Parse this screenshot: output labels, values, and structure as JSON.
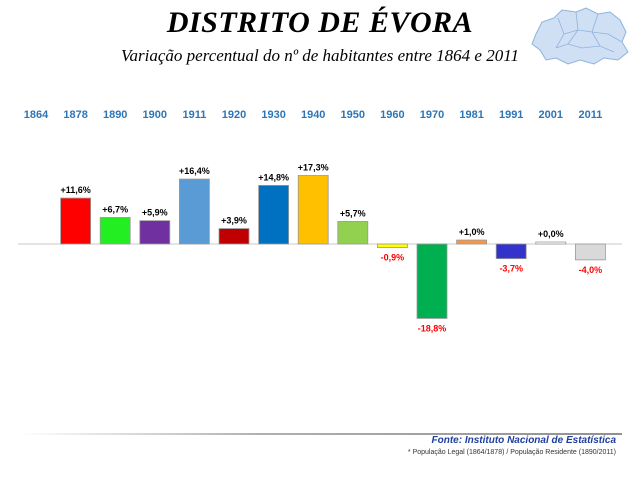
{
  "header": {
    "title": "DISTRITO DE ÉVORA",
    "subtitle": "Variação percentual do nº de habitantes entre 1864 e 2011"
  },
  "map_icon": {
    "icon": "district-map-icon",
    "color": "#cfe0f5",
    "outline": "#8fb2dc"
  },
  "footer": {
    "source": "Fonte: Instituto Nacional de Estatística",
    "note": "* População Legal (1864/1878) / População Residente (1890/2011)"
  },
  "colors": {
    "year_labels": "#2e75b6",
    "positive_label": "#000000",
    "negative_label": "#ff0000",
    "baseline": "#c8c8c8"
  },
  "chart_data": {
    "type": "bar",
    "categories": [
      "1864",
      "1878",
      "1890",
      "1900",
      "1911",
      "1920",
      "1930",
      "1940",
      "1950",
      "1960",
      "1970",
      "1981",
      "1991",
      "2001",
      "2011"
    ],
    "values": [
      null,
      11.6,
      6.7,
      5.9,
      16.4,
      3.9,
      14.8,
      17.3,
      5.7,
      -0.9,
      -18.8,
      1.0,
      -3.7,
      0.0,
      -4.0
    ],
    "labels": [
      "",
      "+11,6%",
      "+6,7%",
      "+5,9%",
      "+16,4%",
      "+3,9%",
      "+14,8%",
      "+17,3%",
      "+5,7%",
      "-0,9%",
      "-18,8%",
      "+1,0%",
      "-3,7%",
      "+0,0%",
      "-4,0%"
    ],
    "bar_colors": [
      "#ffffff",
      "#ff0000",
      "#22ee22",
      "#7030a0",
      "#5b9bd5",
      "#c00000",
      "#0070c0",
      "#ffc000",
      "#92d050",
      "#ffff00",
      "#00b050",
      "#f79646",
      "#3333cc",
      "#ffffff",
      "#d9d9d9"
    ],
    "ylim": [
      -25,
      30
    ],
    "grid": false,
    "legend": "none"
  }
}
